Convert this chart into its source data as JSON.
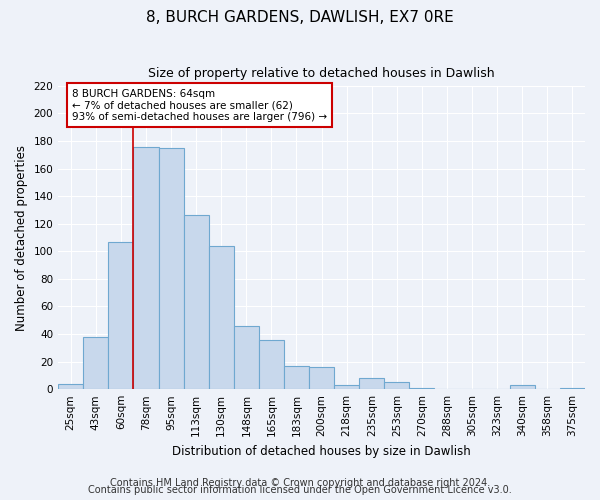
{
  "title": "8, BURCH GARDENS, DAWLISH, EX7 0RE",
  "subtitle": "Size of property relative to detached houses in Dawlish",
  "xlabel": "Distribution of detached houses by size in Dawlish",
  "ylabel": "Number of detached properties",
  "bar_labels": [
    "25sqm",
    "43sqm",
    "60sqm",
    "78sqm",
    "95sqm",
    "113sqm",
    "130sqm",
    "148sqm",
    "165sqm",
    "183sqm",
    "200sqm",
    "218sqm",
    "235sqm",
    "253sqm",
    "270sqm",
    "288sqm",
    "305sqm",
    "323sqm",
    "340sqm",
    "358sqm",
    "375sqm"
  ],
  "bar_values": [
    4,
    38,
    107,
    176,
    175,
    126,
    104,
    46,
    36,
    17,
    16,
    3,
    8,
    5,
    1,
    0,
    0,
    0,
    3,
    0,
    1
  ],
  "bar_color": "#c8d8ec",
  "bar_edge_color": "#6fa8d0",
  "vline_x_pos": 2.5,
  "vline_color": "#cc0000",
  "annotation_text": "8 BURCH GARDENS: 64sqm\n← 7% of detached houses are smaller (62)\n93% of semi-detached houses are larger (796) →",
  "annotation_box_color": "#ffffff",
  "annotation_box_edge": "#cc0000",
  "ylim": [
    0,
    220
  ],
  "yticks": [
    0,
    20,
    40,
    60,
    80,
    100,
    120,
    140,
    160,
    180,
    200,
    220
  ],
  "footer_line1": "Contains HM Land Registry data © Crown copyright and database right 2024.",
  "footer_line2": "Contains public sector information licensed under the Open Government Licence v3.0.",
  "background_color": "#eef2f9",
  "plot_bg_color": "#eef2f9",
  "grid_color": "#ffffff",
  "title_fontsize": 11,
  "subtitle_fontsize": 9,
  "axis_label_fontsize": 8.5,
  "tick_fontsize": 7.5,
  "footer_fontsize": 7,
  "annotation_fontsize": 7.5
}
